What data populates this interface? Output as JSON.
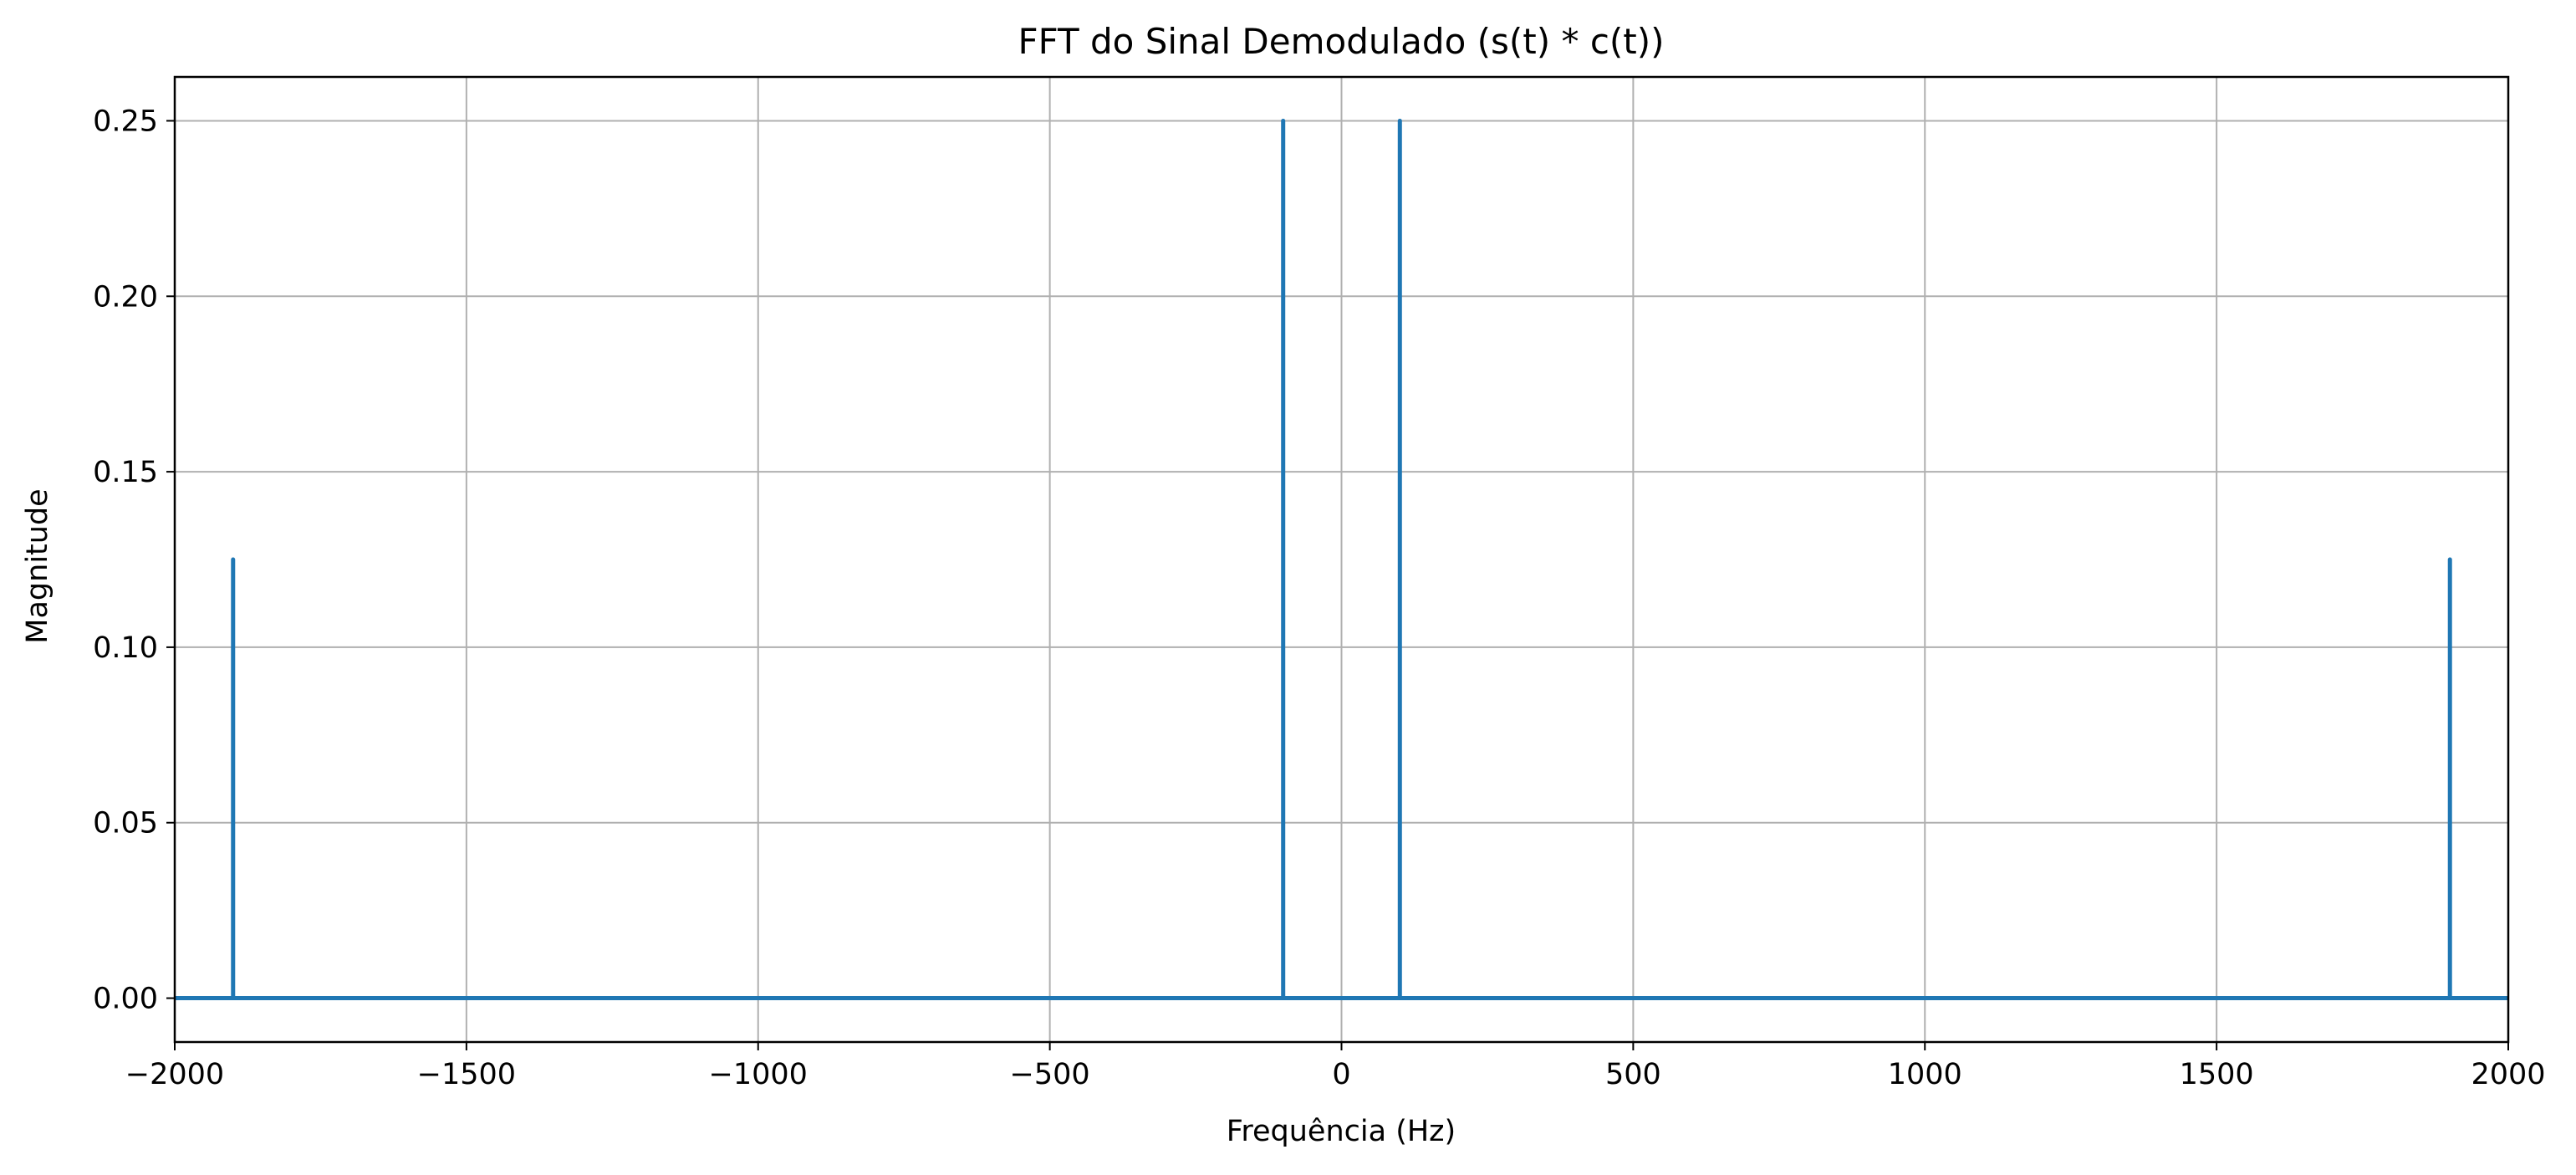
{
  "chart_data": {
    "type": "line",
    "title": "FFT do Sinal Demodulado (s(t) * c(t))",
    "xlabel": "Frequência (Hz)",
    "ylabel": "Magnitude",
    "xlim": [
      -2000,
      2000
    ],
    "ylim": [
      -0.0125,
      0.2625
    ],
    "grid": true,
    "x_ticks": [
      -2000,
      -1500,
      -1000,
      -500,
      0,
      500,
      1000,
      1500,
      2000
    ],
    "x_tick_labels": [
      "−2000",
      "−1500",
      "−1000",
      "−500",
      "0",
      "500",
      "1000",
      "1500",
      "2000"
    ],
    "y_ticks": [
      0.0,
      0.05,
      0.1,
      0.15,
      0.2,
      0.25
    ],
    "y_tick_labels": [
      "0.00",
      "0.05",
      "0.10",
      "0.15",
      "0.20",
      "0.25"
    ],
    "series": [
      {
        "color": "#1f77b4",
        "x": [
          -2000,
          -1900,
          -1900,
          -1900,
          -100,
          -100,
          -100,
          100,
          100,
          100,
          1900,
          1900,
          1900,
          2000
        ],
        "y": [
          0,
          0,
          0.125,
          0,
          0,
          0.25,
          0,
          0,
          0.25,
          0,
          0,
          0.125,
          0,
          0
        ]
      }
    ],
    "colors": {
      "line": "#1f77b4",
      "grid": "#b0b0b0",
      "axes": "#000000"
    }
  }
}
